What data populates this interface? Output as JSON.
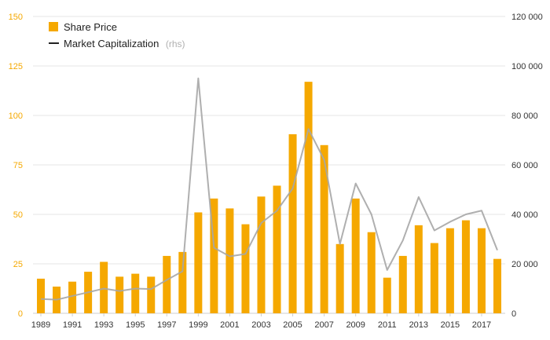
{
  "chart_data": {
    "type": "bar",
    "title": "",
    "categories": [
      "1989",
      "1990",
      "1991",
      "1992",
      "1993",
      "1994",
      "1995",
      "1996",
      "1997",
      "1998",
      "1999",
      "2000",
      "2001",
      "2002",
      "2003",
      "2004",
      "2005",
      "2006",
      "2007",
      "2008",
      "2009",
      "2010",
      "2011",
      "2012",
      "2013",
      "2014",
      "2015",
      "2016",
      "2017",
      "2018"
    ],
    "x_tick_labels": [
      "1989",
      "1991",
      "1993",
      "1995",
      "1997",
      "1999",
      "2001",
      "2003",
      "2005",
      "2007",
      "2009",
      "2011",
      "2013",
      "2015",
      "2017"
    ],
    "series": [
      {
        "name": "Share Price",
        "type": "bar",
        "axis": "left",
        "color": "#f5a800",
        "values": [
          17.5,
          13.5,
          16,
          21,
          26,
          18.5,
          20,
          18.5,
          29,
          31,
          51,
          58,
          53,
          45,
          59,
          64.5,
          90.5,
          117,
          85,
          35,
          58,
          41,
          18,
          29,
          44.5,
          35.5,
          43,
          47,
          43,
          27.5
        ]
      },
      {
        "name": "Market Capitalization",
        "type": "line",
        "axis": "right",
        "color": "#a6a6a6",
        "values": [
          5800,
          5500,
          7000,
          8500,
          10000,
          9000,
          10000,
          9800,
          13500,
          17000,
          95000,
          26500,
          23000,
          24000,
          36500,
          41500,
          50500,
          74500,
          62000,
          28000,
          52500,
          40000,
          17500,
          29500,
          47000,
          33500,
          37000,
          40000,
          41500,
          25500
        ]
      }
    ],
    "legend": {
      "position": "top-left",
      "items": [
        {
          "label": "Share Price",
          "note": "",
          "color": "#f5a800"
        },
        {
          "label": "Market Capitalization",
          "note": "(rhs)",
          "color": "#222222"
        }
      ]
    },
    "y_left": {
      "min": 0,
      "max": 150,
      "ticks": [
        "0",
        "25",
        "50",
        "75",
        "100",
        "125",
        "150"
      ],
      "color": "#f5a800"
    },
    "y_right": {
      "min": 0,
      "max": 120000,
      "ticks": [
        "0",
        "20 000",
        "40 000",
        "60 000",
        "80 000",
        "100 000",
        "120 000"
      ]
    },
    "grid": true
  }
}
